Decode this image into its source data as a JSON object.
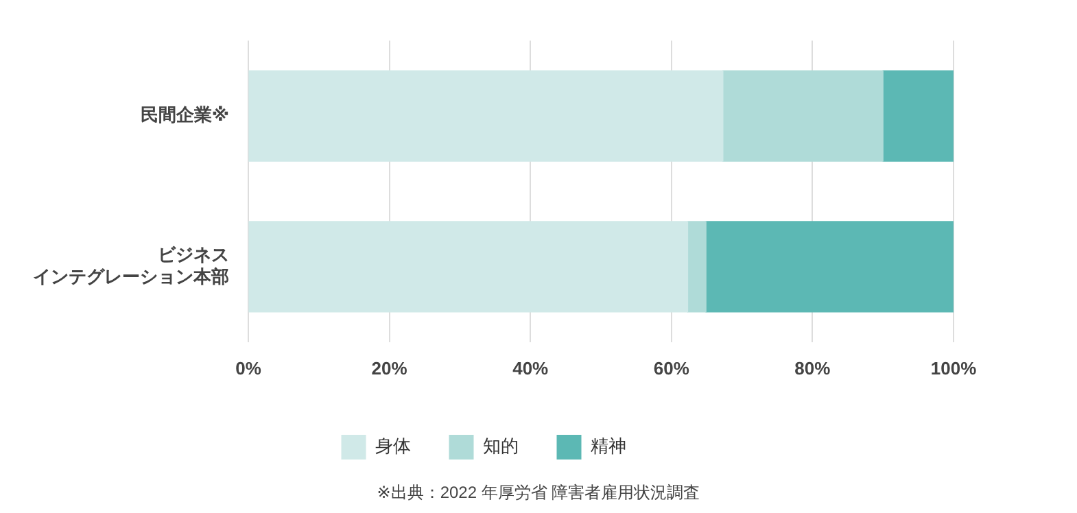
{
  "chart_data": {
    "type": "bar",
    "orientation": "horizontal",
    "stacked": true,
    "categories": [
      "民間企業※",
      "ビジネスインテグレーション本部"
    ],
    "series": [
      {
        "name": "身体",
        "color": "#d0e9e8",
        "values": [
          67.3,
          62.3
        ]
      },
      {
        "name": "知的",
        "color": "#afdbd8",
        "values": [
          22.7,
          2.6
        ]
      },
      {
        "name": "精神",
        "color": "#5cb8b4",
        "values": [
          10.0,
          35.1
        ]
      }
    ],
    "xlim": [
      0,
      100
    ],
    "xticks": [
      {
        "value": 0,
        "label": "0%"
      },
      {
        "value": 20,
        "label": "20%"
      },
      {
        "value": 40,
        "label": "40%"
      },
      {
        "value": 60,
        "label": "60%"
      },
      {
        "value": 80,
        "label": "80%"
      },
      {
        "value": 100,
        "label": "100%"
      }
    ],
    "grid": "x",
    "legend": "bottom",
    "annotations": [
      "※出典：2022 年厚労省 障害者雇用状況調査"
    ]
  }
}
